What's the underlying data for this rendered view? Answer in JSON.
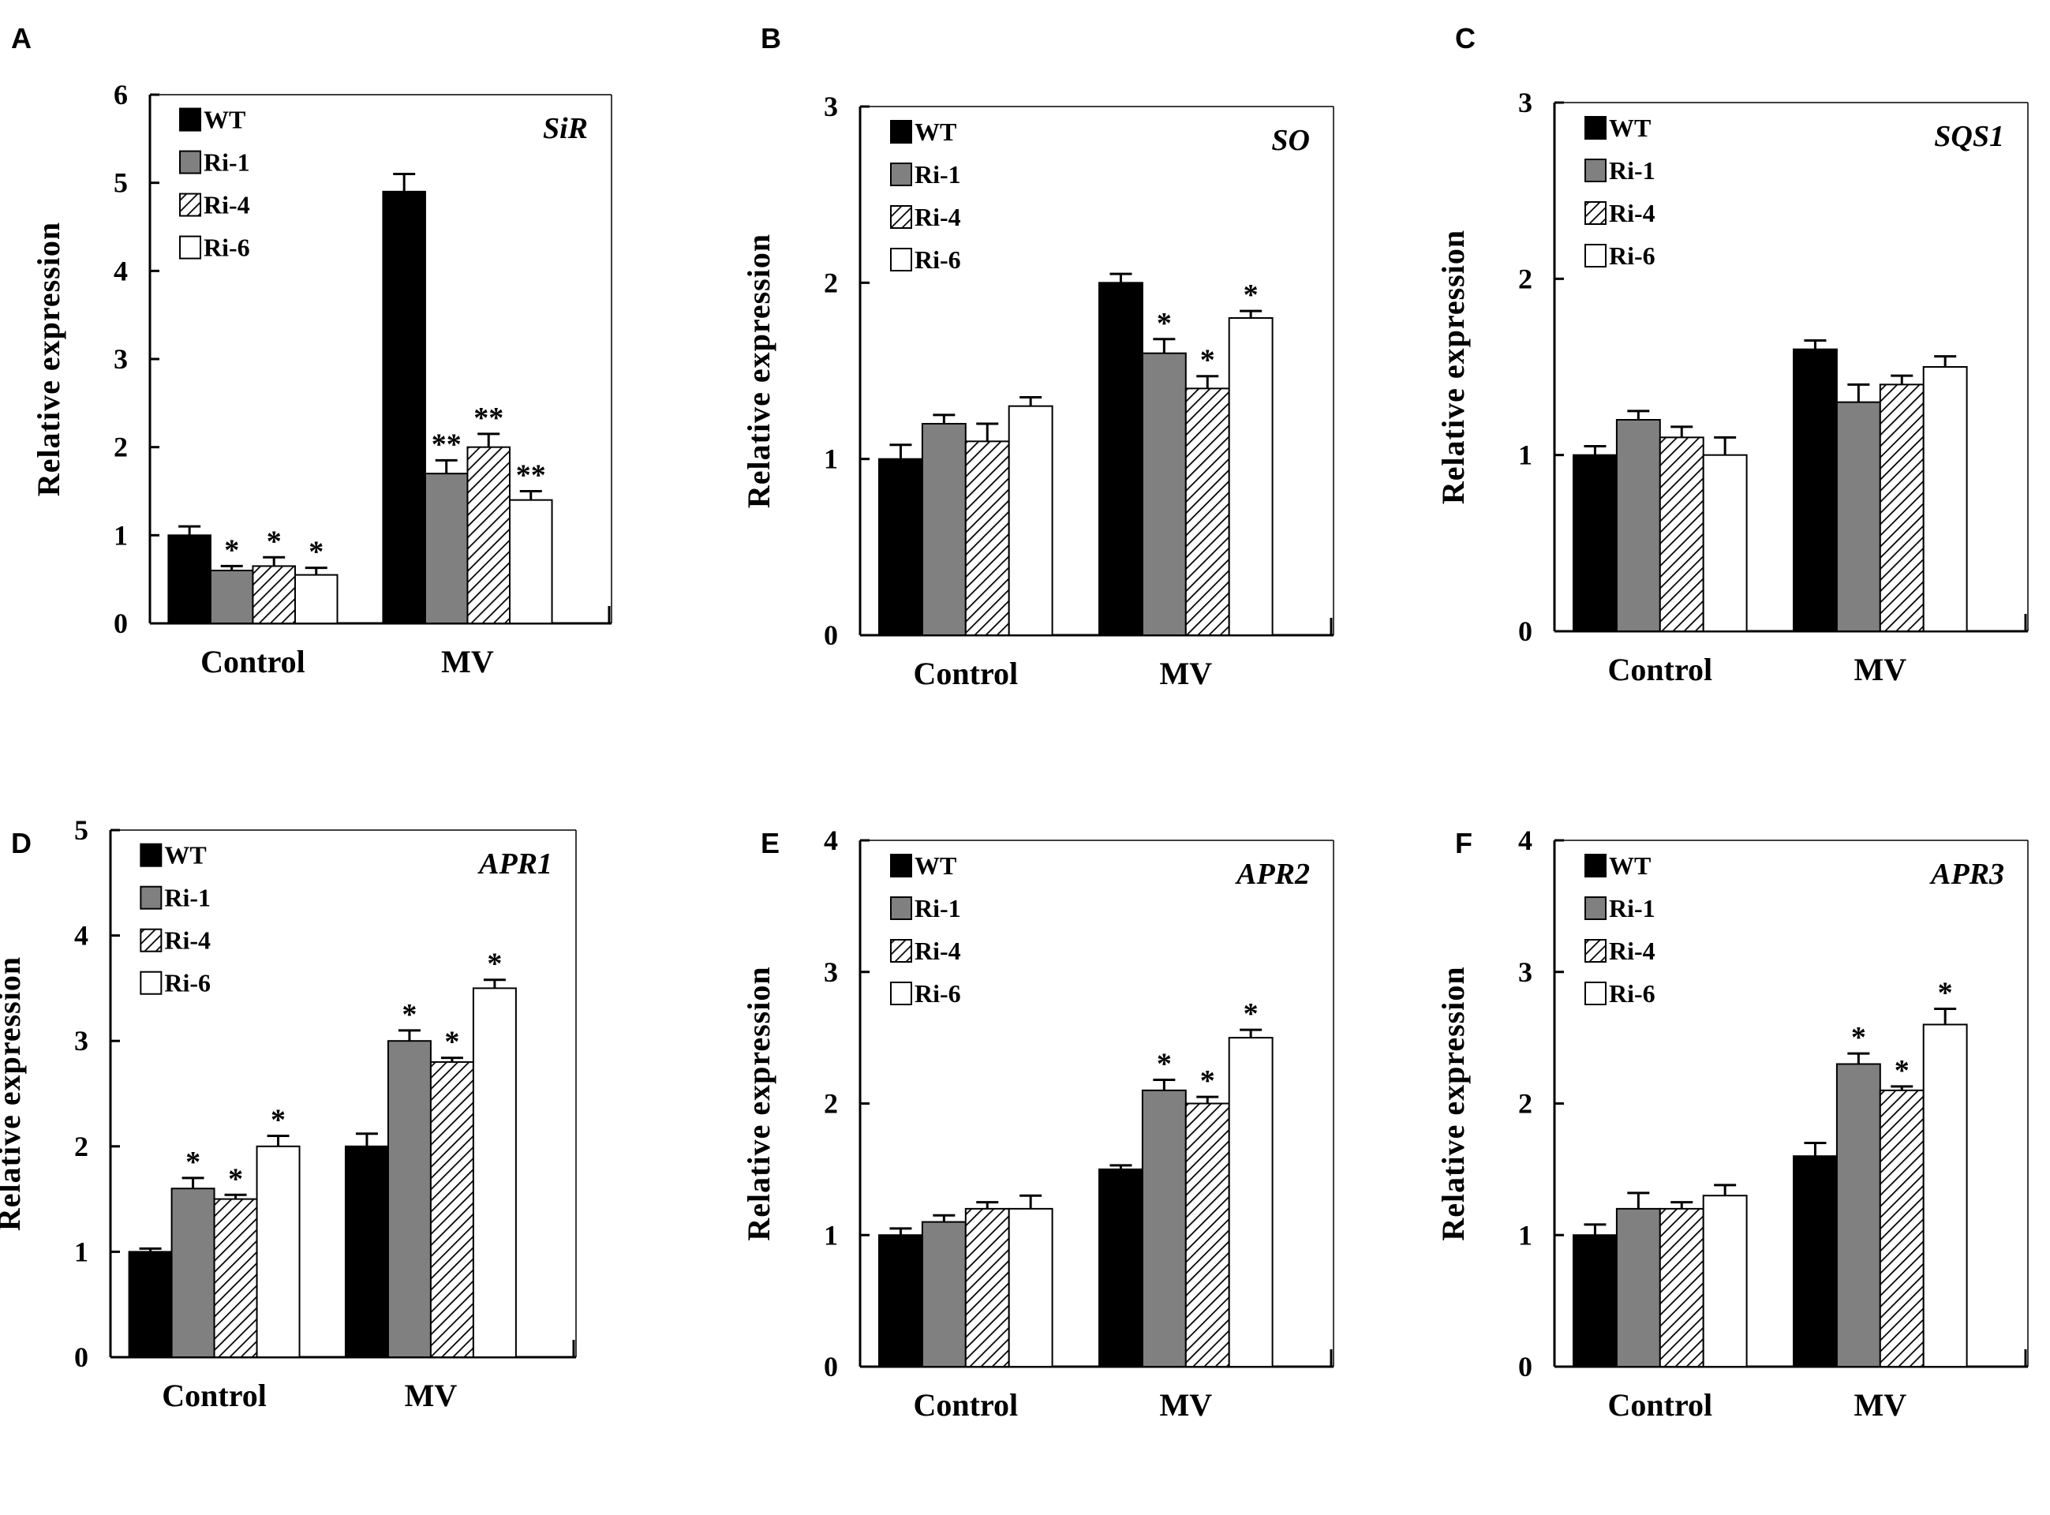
{
  "legend_labels": [
    "WT",
    "Ri-1",
    "Ri-4",
    "Ri-6"
  ],
  "series_style": {
    "WT": "#000000",
    "Ri-1": "#808080",
    "Ri-4": "hatch",
    "Ri-6": "#ffffff"
  },
  "chart_data": [
    {
      "panel": "A",
      "type": "bar",
      "title": "SiR",
      "ylabel": "Relative expression",
      "xlabel": "",
      "categories": [
        "Control",
        "MV"
      ],
      "ylim": [
        0,
        6
      ],
      "yticks": [
        0,
        1,
        2,
        3,
        4,
        5,
        6
      ],
      "series": [
        {
          "name": "WT",
          "values": [
            1.0,
            4.9
          ],
          "errors": [
            0.1,
            0.2
          ],
          "marks": [
            "",
            ""
          ]
        },
        {
          "name": "Ri-1",
          "values": [
            0.6,
            1.7
          ],
          "errors": [
            0.05,
            0.15
          ],
          "marks": [
            "*",
            "**"
          ]
        },
        {
          "name": "Ri-4",
          "values": [
            0.65,
            2.0
          ],
          "errors": [
            0.1,
            0.15
          ],
          "marks": [
            "*",
            "**"
          ]
        },
        {
          "name": "Ri-6",
          "values": [
            0.55,
            1.4
          ],
          "errors": [
            0.08,
            0.1
          ],
          "marks": [
            "*",
            "**"
          ]
        }
      ]
    },
    {
      "panel": "B",
      "type": "bar",
      "title": "SO",
      "ylabel": "Relative expression",
      "xlabel": "",
      "categories": [
        "Control",
        "MV"
      ],
      "ylim": [
        0,
        3
      ],
      "yticks": [
        0,
        1,
        2,
        3
      ],
      "series": [
        {
          "name": "WT",
          "values": [
            1.0,
            2.0
          ],
          "errors": [
            0.08,
            0.05
          ],
          "marks": [
            "",
            ""
          ]
        },
        {
          "name": "Ri-1",
          "values": [
            1.2,
            1.6
          ],
          "errors": [
            0.05,
            0.08
          ],
          "marks": [
            "",
            "*"
          ]
        },
        {
          "name": "Ri-4",
          "values": [
            1.1,
            1.4
          ],
          "errors": [
            0.1,
            0.07
          ],
          "marks": [
            "",
            "*"
          ]
        },
        {
          "name": "Ri-6",
          "values": [
            1.3,
            1.8
          ],
          "errors": [
            0.05,
            0.04
          ],
          "marks": [
            "",
            "*"
          ]
        }
      ]
    },
    {
      "panel": "C",
      "type": "bar",
      "title": "SQS1",
      "ylabel": "Relative expression",
      "xlabel": "",
      "categories": [
        "Control",
        "MV"
      ],
      "ylim": [
        0,
        3
      ],
      "yticks": [
        0,
        1,
        2,
        3
      ],
      "series": [
        {
          "name": "WT",
          "values": [
            1.0,
            1.6
          ],
          "errors": [
            0.05,
            0.05
          ],
          "marks": [
            "",
            ""
          ]
        },
        {
          "name": "Ri-1",
          "values": [
            1.2,
            1.3
          ],
          "errors": [
            0.05,
            0.1
          ],
          "marks": [
            "",
            ""
          ]
        },
        {
          "name": "Ri-4",
          "values": [
            1.1,
            1.4
          ],
          "errors": [
            0.06,
            0.05
          ],
          "marks": [
            "",
            ""
          ]
        },
        {
          "name": "Ri-6",
          "values": [
            1.0,
            1.5
          ],
          "errors": [
            0.1,
            0.06
          ],
          "marks": [
            "",
            ""
          ]
        }
      ]
    },
    {
      "panel": "D",
      "type": "bar",
      "title": "APR1",
      "ylabel": "Relative expression",
      "xlabel": "",
      "categories": [
        "Control",
        "MV"
      ],
      "ylim": [
        0,
        5
      ],
      "yticks": [
        0,
        1,
        2,
        3,
        4,
        5
      ],
      "series": [
        {
          "name": "WT",
          "values": [
            1.0,
            2.0
          ],
          "errors": [
            0.03,
            0.12
          ],
          "marks": [
            "",
            ""
          ]
        },
        {
          "name": "Ri-1",
          "values": [
            1.6,
            3.0
          ],
          "errors": [
            0.1,
            0.1
          ],
          "marks": [
            "*",
            "*"
          ]
        },
        {
          "name": "Ri-4",
          "values": [
            1.5,
            2.8
          ],
          "errors": [
            0.04,
            0.04
          ],
          "marks": [
            "*",
            "*"
          ]
        },
        {
          "name": "Ri-6",
          "values": [
            2.0,
            3.5
          ],
          "errors": [
            0.1,
            0.08
          ],
          "marks": [
            "*",
            "*"
          ]
        }
      ]
    },
    {
      "panel": "E",
      "type": "bar",
      "title": "APR2",
      "ylabel": "Relative expression",
      "xlabel": "",
      "categories": [
        "Control",
        "MV"
      ],
      "ylim": [
        0,
        4
      ],
      "yticks": [
        0,
        1,
        2,
        3,
        4
      ],
      "series": [
        {
          "name": "WT",
          "values": [
            1.0,
            1.5
          ],
          "errors": [
            0.05,
            0.03
          ],
          "marks": [
            "",
            ""
          ]
        },
        {
          "name": "Ri-1",
          "values": [
            1.1,
            2.1
          ],
          "errors": [
            0.05,
            0.08
          ],
          "marks": [
            "",
            "*"
          ]
        },
        {
          "name": "Ri-4",
          "values": [
            1.2,
            2.0
          ],
          "errors": [
            0.05,
            0.05
          ],
          "marks": [
            "",
            "*"
          ]
        },
        {
          "name": "Ri-6",
          "values": [
            1.2,
            2.5
          ],
          "errors": [
            0.1,
            0.06
          ],
          "marks": [
            "",
            "*"
          ]
        }
      ]
    },
    {
      "panel": "F",
      "type": "bar",
      "title": "APR3",
      "ylabel": "Relative expression",
      "xlabel": "",
      "categories": [
        "Control",
        "MV"
      ],
      "ylim": [
        0,
        4
      ],
      "yticks": [
        0,
        1,
        2,
        3,
        4
      ],
      "series": [
        {
          "name": "WT",
          "values": [
            1.0,
            1.6
          ],
          "errors": [
            0.08,
            0.1
          ],
          "marks": [
            "",
            ""
          ]
        },
        {
          "name": "Ri-1",
          "values": [
            1.2,
            2.3
          ],
          "errors": [
            0.12,
            0.08
          ],
          "marks": [
            "",
            "*"
          ]
        },
        {
          "name": "Ri-4",
          "values": [
            1.2,
            2.1
          ],
          "errors": [
            0.05,
            0.03
          ],
          "marks": [
            "",
            "*"
          ]
        },
        {
          "name": "Ri-6",
          "values": [
            1.3,
            2.6
          ],
          "errors": [
            0.08,
            0.12
          ],
          "marks": [
            "",
            "*"
          ]
        }
      ]
    }
  ]
}
